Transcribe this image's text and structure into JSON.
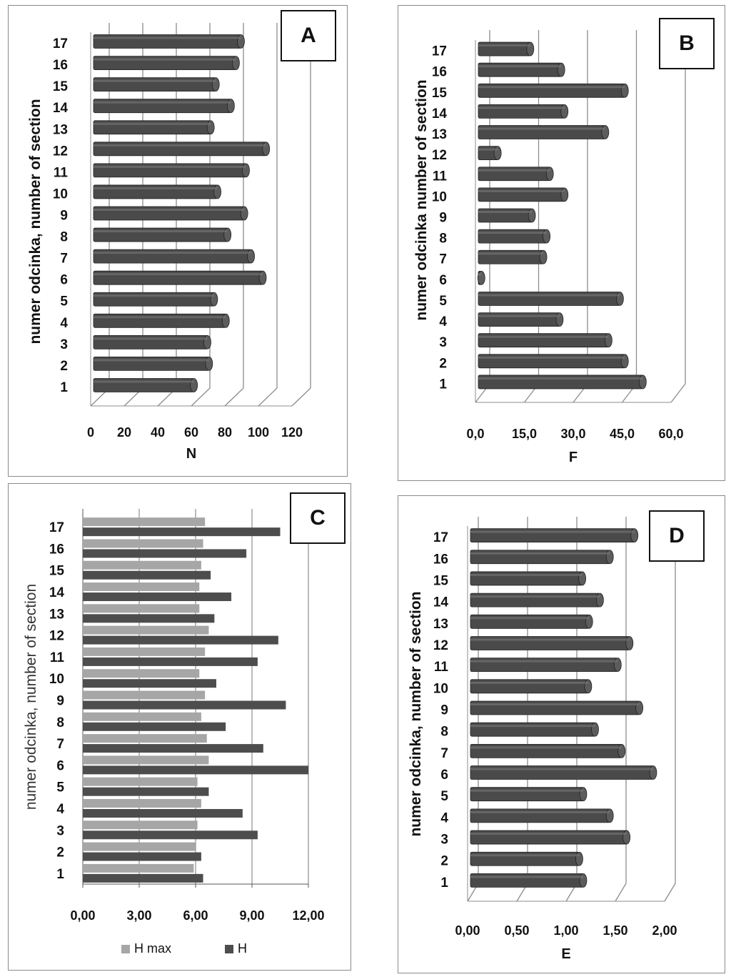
{
  "panels": {
    "A": {
      "label": "A"
    },
    "B": {
      "label": "B"
    },
    "C": {
      "label": "C"
    },
    "D": {
      "label": "D"
    }
  },
  "chart_data": [
    {
      "id": "A",
      "type": "bar",
      "orientation": "horizontal",
      "style": "3d-cylinder",
      "categories": [
        "1",
        "2",
        "3",
        "4",
        "5",
        "6",
        "7",
        "8",
        "9",
        "10",
        "11",
        "12",
        "13",
        "14",
        "15",
        "16",
        "17"
      ],
      "series": [
        {
          "values": [
            59,
            68,
            67,
            78,
            71,
            100,
            93,
            79,
            89,
            73,
            90,
            102,
            69,
            81,
            72,
            84,
            87
          ],
          "color": "#4a4a4a"
        }
      ],
      "xlabel": "N",
      "ylabel": "numer odcinka, number of section",
      "xlim": [
        0,
        120
      ],
      "xticks": [
        "0",
        "20",
        "40",
        "60",
        "80",
        "100",
        "120"
      ],
      "grid": "vertical"
    },
    {
      "id": "B",
      "type": "bar",
      "orientation": "horizontal",
      "style": "3d-cylinder",
      "categories": [
        "1",
        "2",
        "3",
        "4",
        "5",
        "6",
        "7",
        "8",
        "9",
        "10",
        "11",
        "12",
        "13",
        "14",
        "15",
        "16",
        "17"
      ],
      "series": [
        {
          "values": [
            50.0,
            44.5,
            39.5,
            24.5,
            43.0,
            0.5,
            19.5,
            20.5,
            16.0,
            26.0,
            21.5,
            5.5,
            38.5,
            26.0,
            44.5,
            25.0,
            15.5
          ],
          "color": "#4a4a4a"
        }
      ],
      "xlabel": "F",
      "ylabel": "numer odcinka number of section",
      "xlim": [
        0,
        60
      ],
      "xticks": [
        "0,0",
        "15,0",
        "30,0",
        "45,0",
        "60,0"
      ],
      "grid": "vertical"
    },
    {
      "id": "C",
      "type": "bar",
      "orientation": "horizontal",
      "categories": [
        "1",
        "2",
        "3",
        "4",
        "5",
        "6",
        "7",
        "8",
        "9",
        "10",
        "11",
        "12",
        "13",
        "14",
        "15",
        "16",
        "17"
      ],
      "series": [
        {
          "name": "H max",
          "values": [
            5.9,
            6.0,
            6.1,
            6.3,
            6.1,
            6.7,
            6.6,
            6.3,
            6.5,
            6.2,
            6.5,
            6.7,
            6.2,
            6.2,
            6.3,
            6.4,
            6.5
          ],
          "color": "#a6a6a6"
        },
        {
          "name": "H",
          "values": [
            6.4,
            6.3,
            9.3,
            8.5,
            6.7,
            12.0,
            9.6,
            7.6,
            10.8,
            7.1,
            9.3,
            10.4,
            7.0,
            7.9,
            6.8,
            8.7,
            10.5
          ],
          "color": "#4d4d4d"
        }
      ],
      "xlabel": "",
      "ylabel": "numer odcinka, number of section",
      "xlim": [
        0,
        12
      ],
      "xticks": [
        "0,00",
        "3,00",
        "6,00",
        "9,00",
        "12,00"
      ],
      "legend": "bottom",
      "grid": "vertical"
    },
    {
      "id": "D",
      "type": "bar",
      "orientation": "horizontal",
      "style": "3d-cylinder",
      "categories": [
        "1",
        "2",
        "3",
        "4",
        "5",
        "6",
        "7",
        "8",
        "9",
        "10",
        "11",
        "12",
        "13",
        "14",
        "15",
        "16",
        "17"
      ],
      "series": [
        {
          "values": [
            1.13,
            1.09,
            1.57,
            1.4,
            1.13,
            1.84,
            1.52,
            1.25,
            1.7,
            1.18,
            1.48,
            1.6,
            1.19,
            1.3,
            1.12,
            1.4,
            1.65
          ],
          "color": "#4a4a4a"
        }
      ],
      "xlabel": "E",
      "ylabel": "numer odcinka, number of section",
      "xlim": [
        0,
        2
      ],
      "xticks": [
        "0,00",
        "0,50",
        "1,00",
        "1,50",
        "2,00"
      ],
      "grid": "vertical"
    }
  ]
}
